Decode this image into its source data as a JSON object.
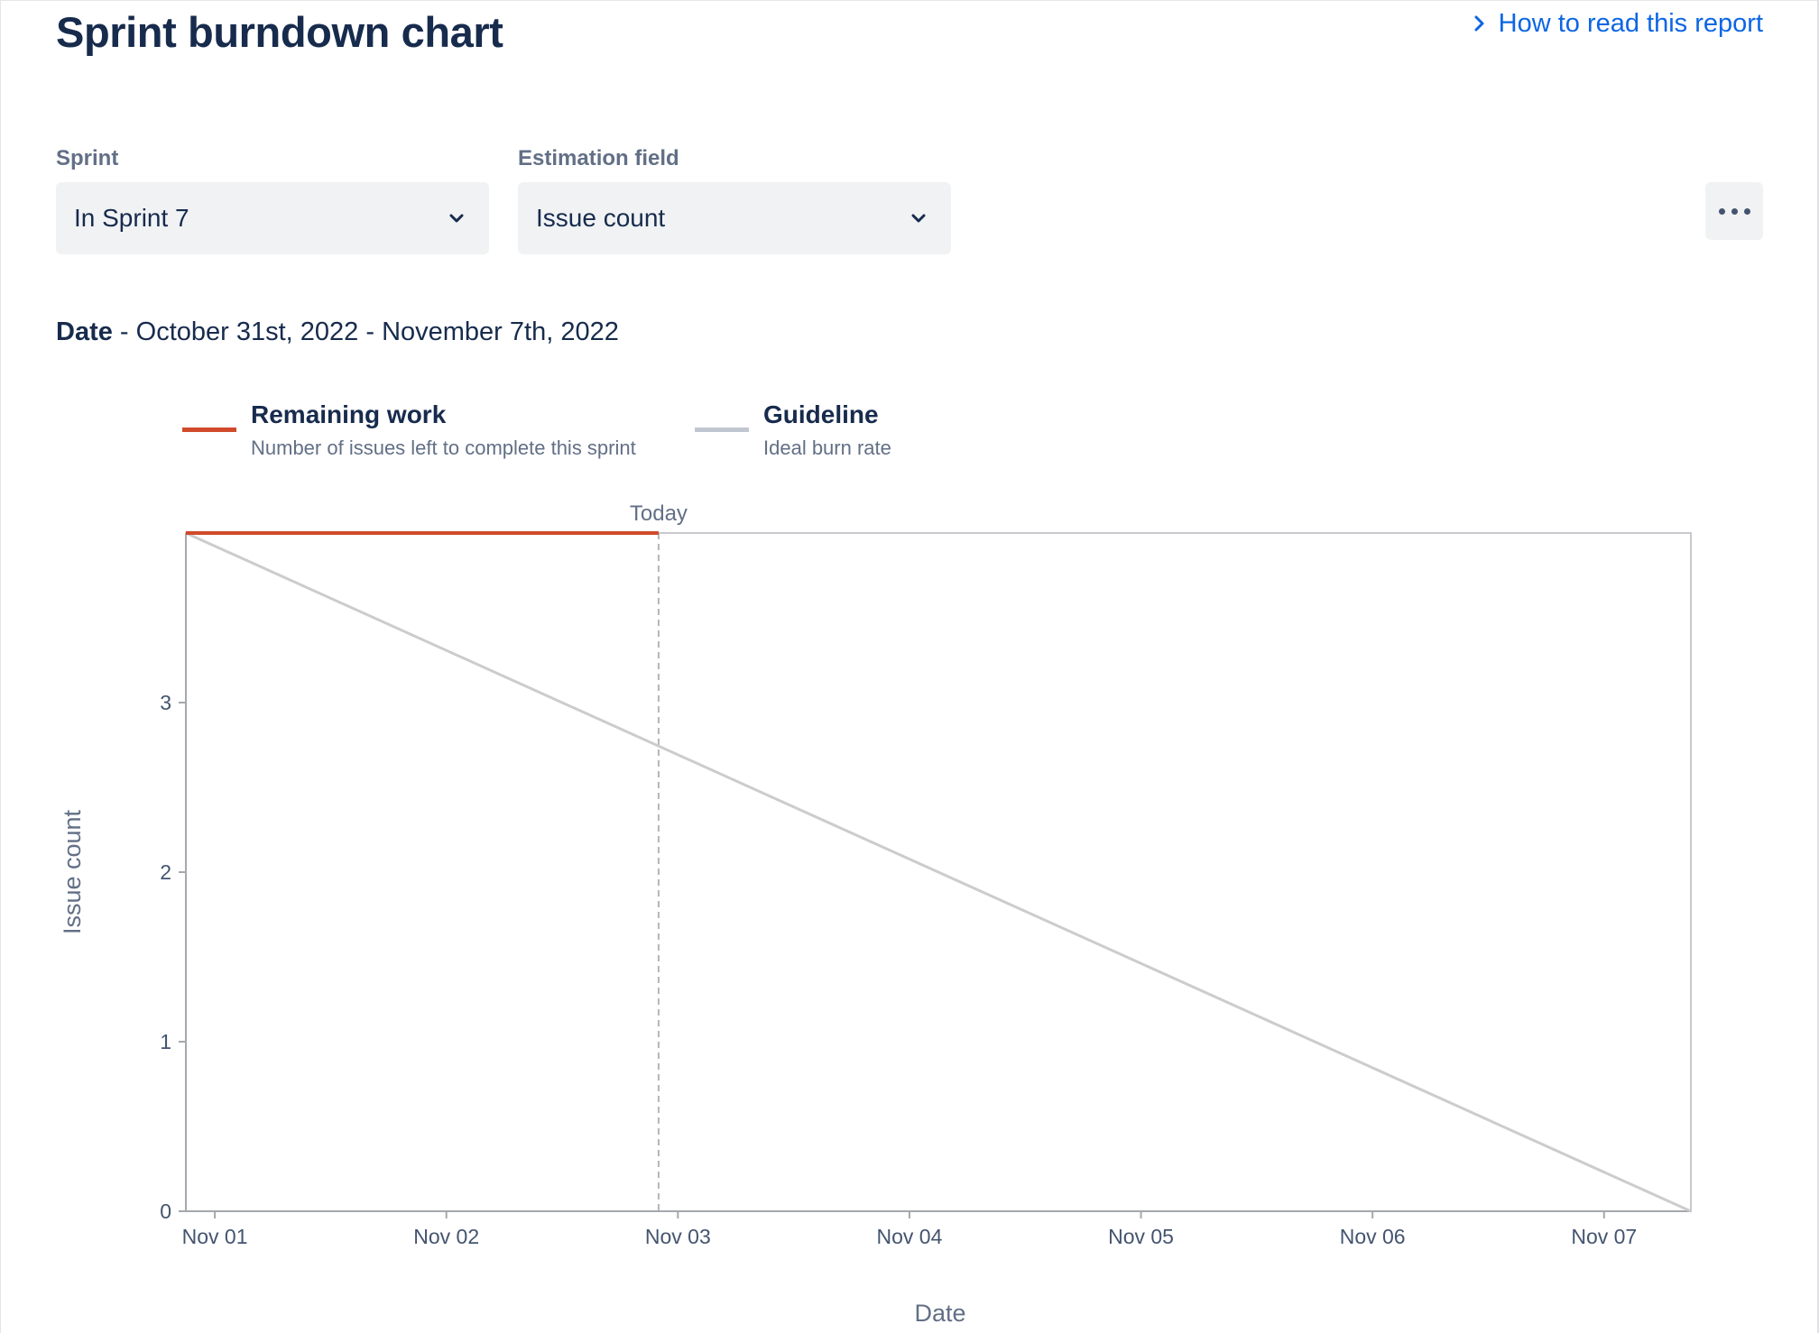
{
  "header": {
    "title": "Sprint burndown chart",
    "help_link": "How to read this report"
  },
  "filters": {
    "sprint": {
      "label": "Sprint",
      "value": "In Sprint 7"
    },
    "estimation": {
      "label": "Estimation field",
      "value": "Issue count"
    }
  },
  "date_range": {
    "label": "Date",
    "value": "- October 31st, 2022 - November 7th, 2022"
  },
  "legend": [
    {
      "title": "Remaining work",
      "subtitle": "Number of issues left to complete this sprint",
      "color": "#d04a2b"
    },
    {
      "title": "Guideline",
      "subtitle": "Ideal burn rate",
      "color": "#c1c7d0"
    }
  ],
  "icons": {
    "help_link": "chevron-right-icon",
    "select": "chevron-down-icon",
    "more": "more-horizontal-icon"
  },
  "chart_data": {
    "type": "line",
    "xlabel": "Date",
    "ylabel": "Issue count",
    "x_ticks": [
      "Nov 01",
      "Nov 02",
      "Nov 03",
      "Nov 04",
      "Nov 05",
      "Nov 06",
      "Nov 07"
    ],
    "x_range": [
      "2022-10-31T21:00",
      "2022-11-07T09:00"
    ],
    "y_ticks": [
      0,
      1,
      2,
      3
    ],
    "ylim": [
      0,
      4
    ],
    "today_label": "Today",
    "today": "2022-11-02T22:00",
    "series": [
      {
        "name": "Remaining work",
        "color": "#d04a2b",
        "points": [
          [
            "2022-10-31T21:00",
            4
          ],
          [
            "2022-11-02T22:00",
            4
          ]
        ]
      },
      {
        "name": "Guideline",
        "color": "#cccccc",
        "points": [
          [
            "2022-10-31T21:00",
            4
          ],
          [
            "2022-11-07T09:00",
            0
          ]
        ]
      }
    ],
    "grid": false
  }
}
